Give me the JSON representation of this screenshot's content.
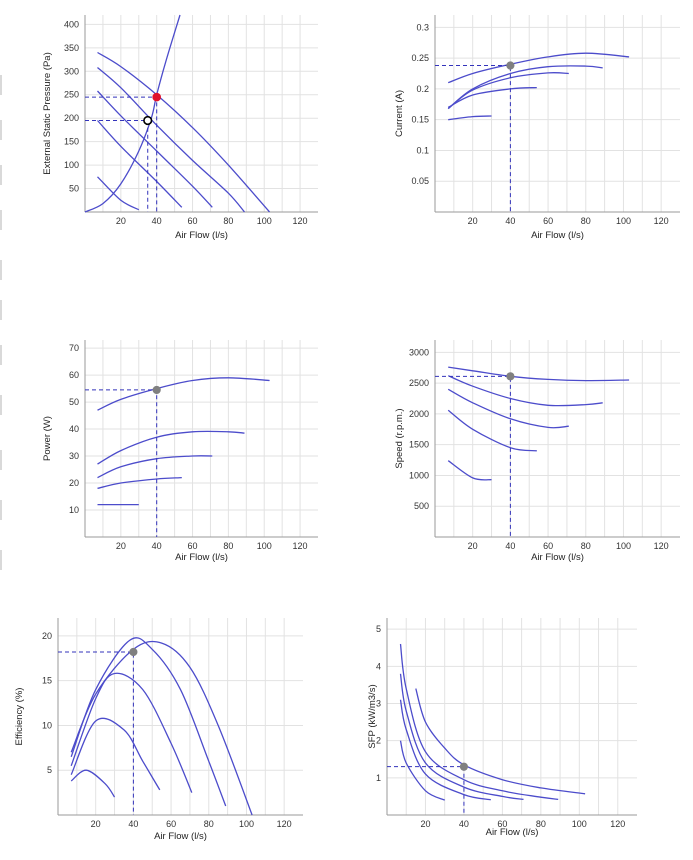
{
  "colors": {
    "curve": "#4c4ccb",
    "guide": "#3333bb",
    "point": "#808080",
    "duty_point": "#e0102a",
    "grid": "#e2e2e2"
  },
  "chart_data": [
    {
      "id": "pressure",
      "type": "line",
      "xlabel": "Air Flow (l/s)",
      "ylabel": "External Static Pressure (Pa)",
      "xlim": [
        0,
        130
      ],
      "ylim": [
        0,
        420
      ],
      "xticks": [
        20,
        40,
        60,
        80,
        100,
        120
      ],
      "yticks": [
        50,
        100,
        150,
        200,
        250,
        300,
        350,
        400
      ],
      "series": [
        {
          "x": [
            7,
            20,
            40,
            60,
            80,
            103
          ],
          "y": [
            340,
            310,
            250,
            180,
            100,
            0
          ]
        },
        {
          "x": [
            7,
            20,
            40,
            60,
            80,
            89
          ],
          "y": [
            308,
            265,
            185,
            110,
            40,
            0
          ]
        },
        {
          "x": [
            7,
            20,
            40,
            60,
            71
          ],
          "y": [
            258,
            205,
            130,
            55,
            10
          ]
        },
        {
          "x": [
            7,
            20,
            40,
            54
          ],
          "y": [
            195,
            140,
            65,
            10
          ]
        },
        {
          "x": [
            7,
            20,
            30
          ],
          "y": [
            75,
            25,
            5
          ]
        },
        {
          "x": [
            0,
            10,
            20,
            30,
            37,
            40,
            45,
            53
          ],
          "y": [
            0,
            18,
            60,
            130,
            200,
            250,
            320,
            420
          ]
        }
      ],
      "markers": [
        {
          "x": 40,
          "y": 245,
          "style": "duty"
        },
        {
          "x": 35,
          "y": 195,
          "style": "open"
        }
      ]
    },
    {
      "id": "current",
      "type": "line",
      "xlabel": "Air Flow (l/s)",
      "ylabel": "Current (A)",
      "xlim": [
        0,
        130
      ],
      "ylim": [
        0,
        0.32
      ],
      "xticks": [
        20,
        40,
        60,
        80,
        100,
        120
      ],
      "yticks": [
        0.05,
        0.1,
        0.15,
        0.2,
        0.25,
        0.3
      ],
      "series": [
        {
          "x": [
            7,
            20,
            40,
            60,
            80,
            103
          ],
          "y": [
            0.21,
            0.225,
            0.24,
            0.252,
            0.258,
            0.252
          ]
        },
        {
          "x": [
            7,
            20,
            40,
            60,
            80,
            89
          ],
          "y": [
            0.168,
            0.2,
            0.225,
            0.236,
            0.237,
            0.234
          ]
        },
        {
          "x": [
            7,
            20,
            40,
            60,
            71
          ],
          "y": [
            0.168,
            0.198,
            0.218,
            0.226,
            0.225
          ]
        },
        {
          "x": [
            7,
            20,
            40,
            54
          ],
          "y": [
            0.17,
            0.19,
            0.2,
            0.202
          ]
        },
        {
          "x": [
            7,
            20,
            30
          ],
          "y": [
            0.15,
            0.155,
            0.156
          ]
        }
      ],
      "markers": [
        {
          "x": 40,
          "y": 0.238,
          "style": "point"
        }
      ]
    },
    {
      "id": "power",
      "type": "line",
      "xlabel": "Air Flow (l/s)",
      "ylabel": "Power (W)",
      "xlim": [
        0,
        130
      ],
      "ylim": [
        0,
        73
      ],
      "xticks": [
        20,
        40,
        60,
        80,
        100,
        120
      ],
      "yticks": [
        10,
        20,
        30,
        40,
        50,
        60,
        70
      ],
      "series": [
        {
          "x": [
            7,
            20,
            40,
            60,
            80,
            103
          ],
          "y": [
            47,
            51,
            55,
            58,
            59,
            58
          ]
        },
        {
          "x": [
            7,
            20,
            40,
            60,
            80,
            89
          ],
          "y": [
            27,
            32,
            37,
            39,
            39,
            38.5
          ]
        },
        {
          "x": [
            7,
            20,
            40,
            60,
            71
          ],
          "y": [
            22,
            26,
            29,
            30,
            30
          ]
        },
        {
          "x": [
            7,
            20,
            40,
            54
          ],
          "y": [
            18,
            20,
            21.5,
            22
          ]
        },
        {
          "x": [
            7,
            20,
            30
          ],
          "y": [
            12,
            12,
            12
          ]
        }
      ],
      "markers": [
        {
          "x": 40,
          "y": 54.5,
          "style": "point"
        }
      ]
    },
    {
      "id": "speed",
      "type": "line",
      "xlabel": "Air Flow (l/s)",
      "ylabel": "Speed (r.p.m.)",
      "xlim": [
        0,
        130
      ],
      "ylim": [
        0,
        3200
      ],
      "xticks": [
        20,
        40,
        60,
        80,
        100,
        120
      ],
      "yticks": [
        500,
        1000,
        1500,
        2000,
        2500,
        3000
      ],
      "series": [
        {
          "x": [
            7,
            20,
            40,
            60,
            80,
            103
          ],
          "y": [
            2760,
            2700,
            2610,
            2560,
            2540,
            2550
          ]
        },
        {
          "x": [
            7,
            20,
            40,
            60,
            80,
            89
          ],
          "y": [
            2620,
            2450,
            2250,
            2140,
            2150,
            2180
          ]
        },
        {
          "x": [
            7,
            20,
            40,
            60,
            71
          ],
          "y": [
            2400,
            2180,
            1920,
            1780,
            1800
          ]
        },
        {
          "x": [
            7,
            20,
            40,
            54
          ],
          "y": [
            2060,
            1750,
            1450,
            1400
          ]
        },
        {
          "x": [
            7,
            20,
            30
          ],
          "y": [
            1240,
            960,
            930
          ]
        }
      ],
      "markers": [
        {
          "x": 40,
          "y": 2610,
          "style": "point"
        }
      ]
    },
    {
      "id": "efficiency",
      "type": "line",
      "xlabel": "Air Flow (l/s)",
      "ylabel": "Efficiency (%)",
      "xlim": [
        0,
        130
      ],
      "ylim": [
        0,
        22
      ],
      "xticks": [
        20,
        40,
        60,
        80,
        100,
        120
      ],
      "yticks": [
        5,
        10,
        15,
        20
      ],
      "series": [
        {
          "x": [
            7,
            20,
            40,
            55,
            70,
            85,
            103
          ],
          "y": [
            7,
            13.5,
            18.5,
            19.2,
            16.5,
            10,
            0
          ]
        },
        {
          "x": [
            7,
            20,
            38,
            50,
            65,
            80,
            89
          ],
          "y": [
            6.5,
            14,
            19.5,
            18.5,
            14,
            6,
            1
          ]
        },
        {
          "x": [
            7,
            20,
            30,
            45,
            60,
            71
          ],
          "y": [
            5.5,
            13,
            15.8,
            14,
            8,
            2.5
          ]
        },
        {
          "x": [
            7,
            20,
            35,
            45,
            54
          ],
          "y": [
            4.5,
            10.5,
            9.5,
            6,
            2.8
          ]
        },
        {
          "x": [
            7,
            15,
            25,
            30
          ],
          "y": [
            3.8,
            5,
            3.5,
            2
          ]
        }
      ],
      "markers": [
        {
          "x": 40,
          "y": 18.2,
          "style": "point"
        }
      ]
    },
    {
      "id": "sfp",
      "type": "line",
      "xlabel": "Air Flow (l/s)",
      "ylabel": "SFP (kW/m3/s)",
      "xlim": [
        0,
        130
      ],
      "ylim": [
        0,
        5.3
      ],
      "xticks": [
        20,
        40,
        60,
        80,
        100,
        120
      ],
      "yticks": [
        1,
        2,
        3,
        4,
        5
      ],
      "series": [
        {
          "x": [
            15,
            20,
            30,
            40,
            60,
            80,
            103
          ],
          "y": [
            3.4,
            2.5,
            1.8,
            1.35,
            0.95,
            0.73,
            0.57
          ]
        },
        {
          "x": [
            7,
            10,
            20,
            40,
            60,
            80,
            89
          ],
          "y": [
            4.6,
            3.4,
            1.7,
            0.95,
            0.65,
            0.48,
            0.42
          ]
        },
        {
          "x": [
            7,
            10,
            20,
            40,
            60,
            71
          ],
          "y": [
            3.8,
            2.8,
            1.4,
            0.75,
            0.5,
            0.42
          ]
        },
        {
          "x": [
            7,
            10,
            20,
            40,
            54
          ],
          "y": [
            3.1,
            2.3,
            1.1,
            0.55,
            0.41
          ]
        },
        {
          "x": [
            7,
            10,
            20,
            30
          ],
          "y": [
            2.0,
            1.4,
            0.65,
            0.4
          ]
        }
      ],
      "markers": [
        {
          "x": 40,
          "y": 1.3,
          "style": "point"
        }
      ]
    }
  ]
}
